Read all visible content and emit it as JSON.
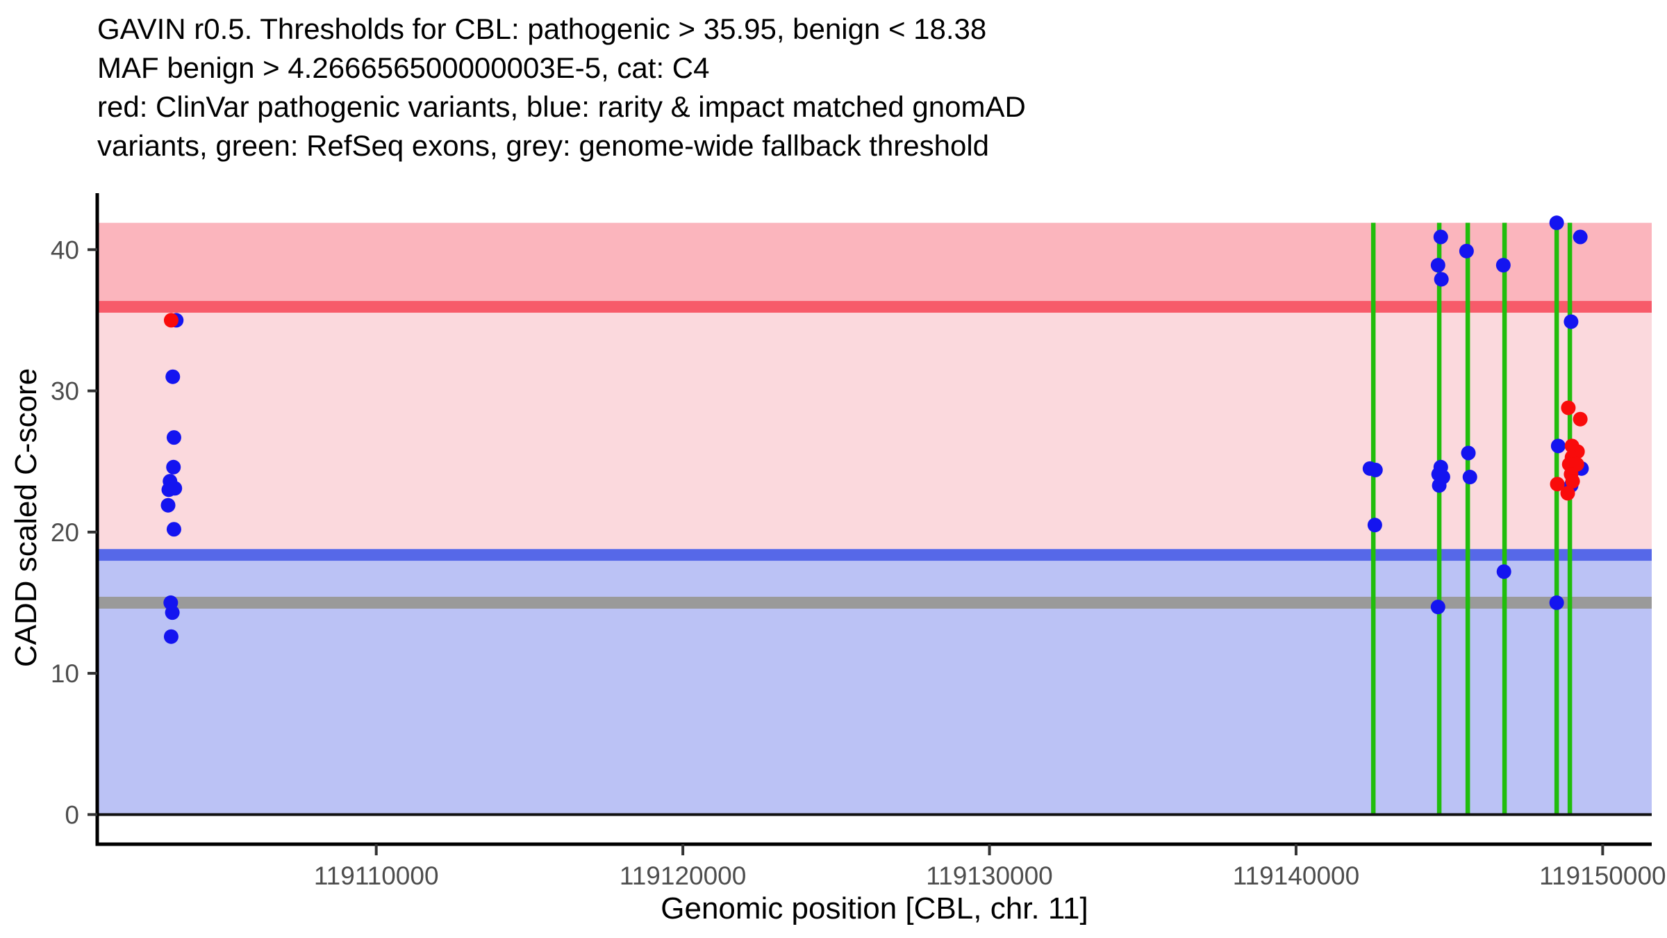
{
  "title": {
    "line1": "GAVIN r0.5. Thresholds for CBL: pathogenic > 35.95, benign < 18.38",
    "line2": "MAF benign > 4.266656500000003E-5, cat: C4",
    "line3": "red: ClinVar pathogenic variants, blue: rarity & impact matched gnomAD",
    "line4": "variants, green: RefSeq exons, grey: genome-wide fallback threshold"
  },
  "axes": {
    "x_title": "Genomic position [CBL, chr. 11]",
    "y_title": "CADD scaled C-score"
  },
  "colors": {
    "upper_pink_band": "#FBB5BD",
    "light_pink_band": "#FBD9DD",
    "red_threshold": "#F75B6A",
    "blue_threshold": "#5668E8",
    "lavender_band": "#BBC2F5",
    "grey_threshold": "#9A9A9A",
    "exon_green": "#21BD0C",
    "blue_point": "#1414F0",
    "red_point": "#F90B0B",
    "axis_line": "#000000",
    "zero_line": "#111111",
    "tick_mark": "#333333",
    "tick_text": "#4D4D4D"
  },
  "chart_data": {
    "type": "scatter",
    "title": "GAVIN r0.5. Thresholds for CBL: pathogenic > 35.95, benign < 18.38 MAF benign > 4.266656500000003E-5, cat: C4",
    "subtitle": "red: ClinVar pathogenic variants, blue: rarity & impact matched gnomAD variants, green: RefSeq exons, grey: genome-wide fallback threshold",
    "xlabel": "Genomic position [CBL, chr. 11]",
    "ylabel": "CADD scaled C-score",
    "grid": false,
    "legend_position": "none",
    "x_domain": [
      119100900,
      119151600
    ],
    "y_domain": [
      -2.1,
      44.0
    ],
    "shade_top": 41.9,
    "x_ticks": {
      "labels": [
        "119110000",
        "119120000",
        "119130000",
        "119140000",
        "119150000"
      ],
      "values": [
        119110000,
        119120000,
        119130000,
        119140000,
        119150000
      ]
    },
    "y_ticks": {
      "labels": [
        "0",
        "10",
        "20",
        "30",
        "40"
      ],
      "values": [
        0,
        10,
        20,
        30,
        40
      ]
    },
    "thresholds": {
      "pathogenic": 35.95,
      "benign": 18.38,
      "fallback_genome_wide": 15.0,
      "band_halfwidth_units": 0.42
    },
    "exon_positions": [
      119142520,
      119144670,
      119145600,
      119146800,
      119148500,
      119148930
    ],
    "series": [
      {
        "name": "rarity & impact matched gnomAD variants",
        "color_key": "blue_point",
        "points": [
          [
            119103477,
            35.0
          ],
          [
            119103364,
            31.0
          ],
          [
            119103402,
            26.7
          ],
          [
            119103386,
            24.6
          ],
          [
            119103273,
            23.6
          ],
          [
            119103234,
            23.0
          ],
          [
            119103431,
            23.1
          ],
          [
            119103211,
            21.9
          ],
          [
            119103402,
            20.2
          ],
          [
            119103297,
            15.0
          ],
          [
            119103349,
            14.3
          ],
          [
            119103311,
            12.6
          ],
          [
            119148500,
            41.9
          ],
          [
            119149270,
            40.9
          ],
          [
            119144720,
            40.9
          ],
          [
            119145560,
            39.9
          ],
          [
            119146760,
            38.9
          ],
          [
            119144630,
            38.9
          ],
          [
            119144740,
            37.9
          ],
          [
            119148970,
            34.9
          ],
          [
            119148550,
            26.1
          ],
          [
            119145620,
            25.6
          ],
          [
            119149310,
            24.5
          ],
          [
            119142410,
            24.5
          ],
          [
            119142590,
            24.4
          ],
          [
            119144720,
            24.6
          ],
          [
            119144650,
            24.1
          ],
          [
            119144790,
            23.9
          ],
          [
            119145670,
            23.9
          ],
          [
            119148970,
            23.3
          ],
          [
            119144670,
            23.3
          ],
          [
            119142570,
            20.5
          ],
          [
            119146780,
            17.2
          ],
          [
            119144630,
            14.7
          ],
          [
            119148500,
            15.0
          ]
        ]
      },
      {
        "name": "ClinVar pathogenic variants",
        "color_key": "red_point",
        "points": [
          [
            119103311,
            35.0
          ],
          [
            119148880,
            28.8
          ],
          [
            119149270,
            28.0
          ],
          [
            119149000,
            26.1
          ],
          [
            119149180,
            25.7
          ],
          [
            119149000,
            25.3
          ],
          [
            119148910,
            24.8
          ],
          [
            119149160,
            24.8
          ],
          [
            119148970,
            24.1
          ],
          [
            119149020,
            23.6
          ],
          [
            119148520,
            23.4
          ],
          [
            119148860,
            22.75
          ]
        ]
      }
    ]
  }
}
